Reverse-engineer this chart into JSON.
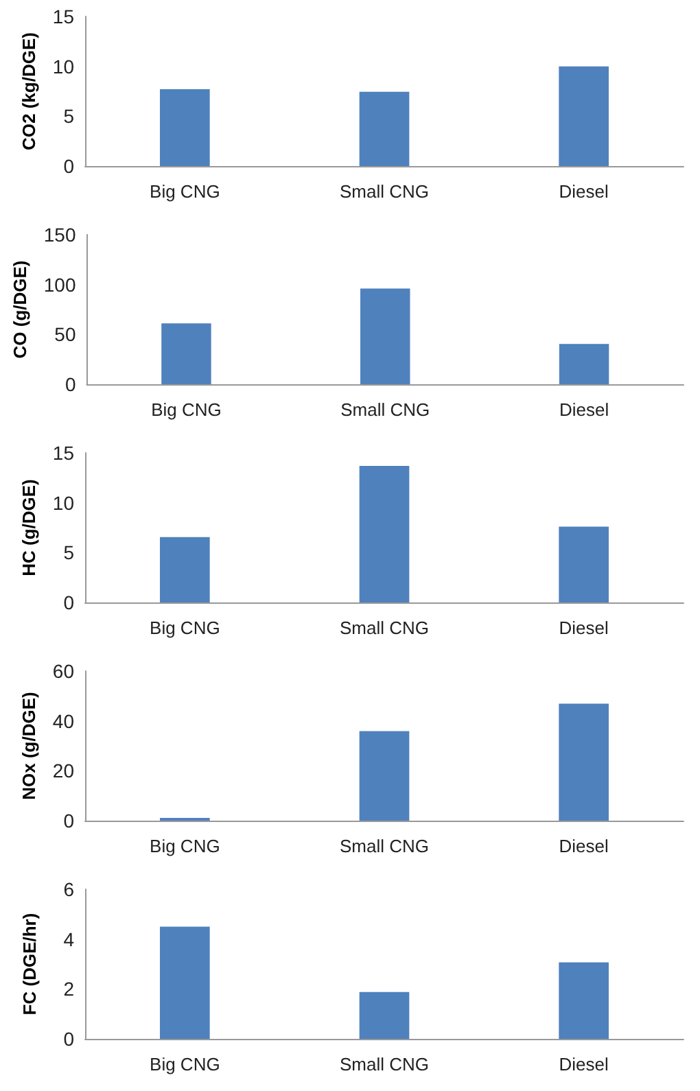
{
  "chart_data": [
    {
      "type": "bar",
      "ylabel": "CO2 (kg/DGE)",
      "categories": [
        "Big CNG",
        "Small CNG",
        "Diesel"
      ],
      "values": [
        7.7,
        7.45,
        10.0
      ],
      "color": "#4f81bd",
      "ylim": [
        0,
        15
      ],
      "yticks": [
        0,
        5,
        10,
        15
      ],
      "grid": false
    },
    {
      "type": "bar",
      "ylabel": "CO (g/DGE)",
      "categories": [
        "Big CNG",
        "Small CNG",
        "Diesel"
      ],
      "values": [
        61,
        96,
        40.5
      ],
      "color": "#4f81bd",
      "ylim": [
        0,
        150
      ],
      "yticks": [
        0,
        50,
        100,
        150
      ],
      "grid": false
    },
    {
      "type": "bar",
      "ylabel": "HC (g/DGE)",
      "categories": [
        "Big CNG",
        "Small CNG",
        "Diesel"
      ],
      "values": [
        6.55,
        13.7,
        7.6
      ],
      "color": "#4f81bd",
      "ylim": [
        0,
        15
      ],
      "yticks": [
        0,
        5,
        10,
        15
      ],
      "grid": false
    },
    {
      "type": "bar",
      "ylabel": "NOx (g/DGE)",
      "categories": [
        "Big CNG",
        "Small CNG",
        "Diesel"
      ],
      "values": [
        1.1,
        35.9,
        46.9
      ],
      "color": "#4f81bd",
      "ylim": [
        0,
        60
      ],
      "yticks": [
        0,
        20,
        40,
        60
      ],
      "grid": false
    },
    {
      "type": "bar",
      "ylabel": "FC (DGE/hr)",
      "categories": [
        "Big CNG",
        "Small CNG",
        "Diesel"
      ],
      "values": [
        4.5,
        1.88,
        3.07
      ],
      "color": "#4f81bd",
      "ylim": [
        0,
        6
      ],
      "yticks": [
        0,
        2,
        4,
        6
      ],
      "grid": false
    }
  ]
}
